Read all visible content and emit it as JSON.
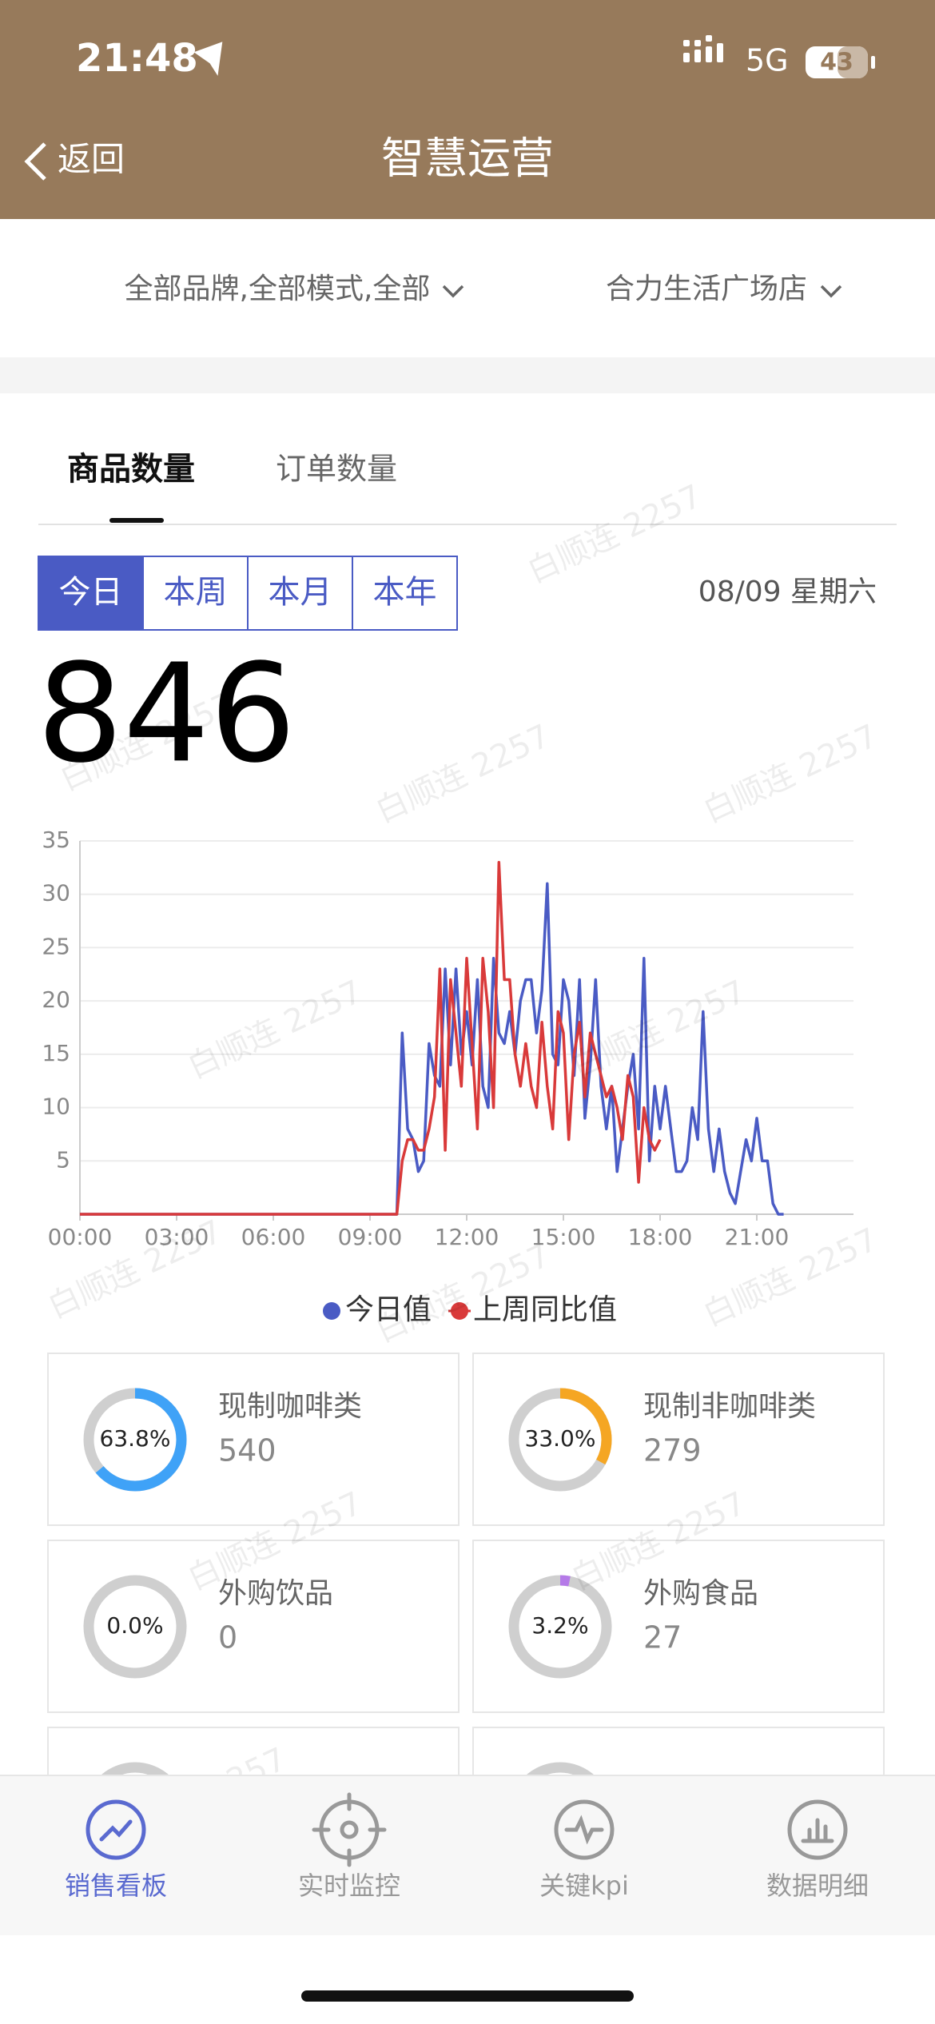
{
  "status_bar": {
    "time": "21:48",
    "network": "5G",
    "battery": "43"
  },
  "nav": {
    "back": "返回",
    "title": "智慧运营"
  },
  "filters": [
    "全部品牌,全部模式,全部",
    "合力生活广场店"
  ],
  "tabs": [
    "商品数量",
    "订单数量"
  ],
  "periods": [
    "今日",
    "本周",
    "本月",
    "本年"
  ],
  "date": "08/09 星期六",
  "total": "846",
  "watermark": "白顺连 2257",
  "chart_data": {
    "type": "line",
    "x": [
      0,
      590,
      600,
      610,
      620,
      630,
      640,
      650,
      660,
      670,
      680,
      690,
      700,
      710,
      720,
      730,
      740,
      750,
      760,
      770,
      780,
      790,
      800,
      810,
      820,
      830,
      840,
      850,
      860,
      870,
      880,
      890,
      900,
      910,
      920,
      930,
      940,
      950,
      960,
      970,
      980,
      990,
      1000,
      1010,
      1020,
      1030,
      1040,
      1050,
      1060,
      1070,
      1080,
      1090,
      1100,
      1110,
      1120,
      1130,
      1140,
      1150,
      1160,
      1170,
      1180,
      1190,
      1200,
      1210,
      1220,
      1230,
      1240,
      1250,
      1260,
      1270,
      1280,
      1290,
      1300,
      1310
    ],
    "xlim": [
      0,
      1440
    ],
    "xticks": [
      {
        "value": 0,
        "label": "00:00"
      },
      {
        "value": 180,
        "label": "03:00"
      },
      {
        "value": 360,
        "label": "06:00"
      },
      {
        "value": 540,
        "label": "09:00"
      },
      {
        "value": 720,
        "label": "12:00"
      },
      {
        "value": 900,
        "label": "15:00"
      },
      {
        "value": 1080,
        "label": "18:00"
      },
      {
        "value": 1260,
        "label": "21:00"
      }
    ],
    "ylim": [
      0,
      35
    ],
    "yticks": [
      5,
      10,
      15,
      20,
      25,
      30,
      35
    ],
    "grid": true,
    "series": [
      {
        "name": "今日值",
        "color": "#4a5bc4",
        "values": [
          0,
          0,
          17,
          8,
          7,
          4,
          5,
          16,
          13,
          12,
          23,
          14,
          23,
          15,
          19,
          14,
          22,
          12,
          10,
          24,
          17,
          16,
          19,
          15,
          20,
          22,
          22,
          17,
          21,
          31,
          15,
          14,
          22,
          20,
          13,
          22,
          9,
          14,
          22,
          12,
          8,
          12,
          4,
          8,
          12,
          15,
          8,
          24,
          5,
          12,
          8,
          12,
          8,
          4,
          4,
          5,
          10,
          7,
          19,
          8,
          4,
          8,
          4,
          2,
          1,
          4,
          7,
          5,
          9,
          5,
          5,
          1,
          0,
          0
        ]
      },
      {
        "name": "上周同比值",
        "color": "#d93a3a",
        "values": [
          0,
          0,
          5,
          7,
          7,
          6,
          6,
          8,
          11,
          23,
          6,
          22,
          17,
          12,
          24,
          16,
          8,
          24,
          19,
          10,
          33,
          22,
          22,
          15,
          12,
          16,
          12,
          10,
          18,
          12,
          8,
          19,
          17,
          7,
          15,
          18,
          11,
          17,
          15,
          13,
          11,
          12,
          10,
          7,
          13,
          11,
          3,
          10,
          7,
          6,
          7,
          null,
          null,
          null,
          null,
          null,
          null,
          null,
          null,
          null,
          null,
          null,
          null,
          null,
          null,
          null,
          null,
          null,
          null,
          null,
          null,
          null,
          null,
          null
        ]
      }
    ]
  },
  "cards": [
    {
      "name": "现制咖啡类",
      "count": "540",
      "percent": {
        "value": 63.8,
        "label": "63.8%"
      },
      "color": "#3fa2f7"
    },
    {
      "name": "现制非咖啡类",
      "count": "279",
      "percent": {
        "value": 33.0,
        "label": "33.0%"
      },
      "color": "#f5a623"
    },
    {
      "name": "外购饮品",
      "count": "0",
      "percent": {
        "value": 0.0,
        "label": "0.0%"
      },
      "color": "#3fa2f7"
    },
    {
      "name": "外购食品",
      "count": "27",
      "percent": {
        "value": 3.2,
        "label": "3.2%"
      },
      "color": "#b57ae8"
    }
  ],
  "bottom_tabs": [
    "销售看板",
    "实时监控",
    "关键kpi",
    "数据明细"
  ]
}
